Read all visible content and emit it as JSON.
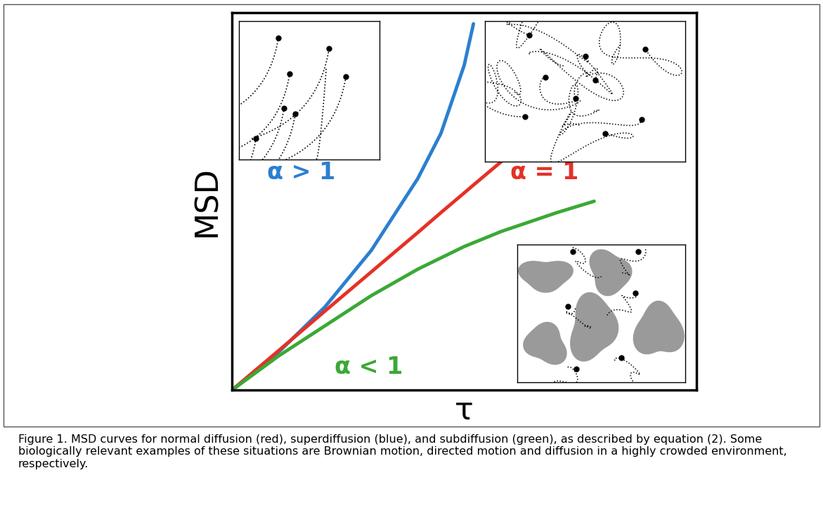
{
  "chart_data": {
    "type": "line",
    "x": [
      0,
      0.1,
      0.2,
      0.3,
      0.4,
      0.45,
      0.5,
      0.52,
      0.58,
      0.7,
      0.78
    ],
    "series": [
      {
        "name": "α > 1",
        "color": "#2b7fd0",
        "values": [
          0,
          0.1,
          0.22,
          0.37,
          0.56,
          0.68,
          0.86,
          0.97,
          null,
          null,
          null
        ]
      },
      {
        "name": "α = 1",
        "color": "#e53126",
        "values": [
          0,
          0.104,
          0.209,
          0.313,
          0.417,
          0.47,
          0.522,
          0.543,
          0.605,
          null,
          null
        ]
      },
      {
        "name": "α < 1",
        "color": "#3aa935",
        "values": [
          0,
          0.09,
          0.17,
          0.25,
          0.32,
          0.35,
          0.38,
          0.39,
          0.42,
          0.47,
          0.5
        ]
      }
    ],
    "xlabel": "τ",
    "ylabel": "MSD",
    "xlim": [
      0,
      1
    ],
    "ylim": [
      0,
      1
    ],
    "xticks": [],
    "yticks": [],
    "tick_labels": false,
    "caption": "Figure 1. MSD curves for normal diffusion (red), superdiffusion (blue), and subdiffusion (green), as described by equation (2). Some biologically relevant examples of these situations are Brownian motion, directed motion and diffusion in a highly crowded environment, respectively."
  }
}
